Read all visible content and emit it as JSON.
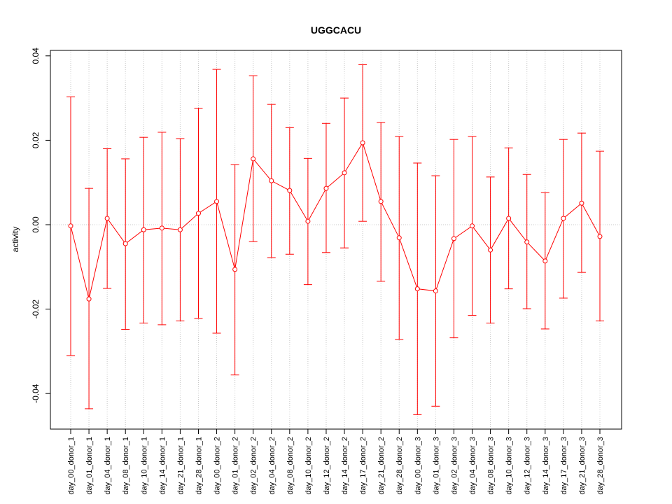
{
  "chart_data": {
    "type": "line",
    "title": "UGGCACU",
    "xlabel": "",
    "ylabel": "activity",
    "ylim": [
      -0.0485,
      0.0415
    ],
    "yticks": [
      -0.04,
      -0.02,
      0.0,
      0.02,
      0.04
    ],
    "ytick_labels": [
      "-0.04",
      "-0.02",
      "0.00",
      "0.02",
      "0.04"
    ],
    "grid": "dotted vertical at each category, horizontal at 0",
    "color": "#ff0000",
    "categories": [
      "day_00_donor_1",
      "day_01_donor_1",
      "day_04_donor_1",
      "day_08_donor_1",
      "day_10_donor_1",
      "day_14_donor_1",
      "day_21_donor_1",
      "day_28_donor_1",
      "day_00_donor_2",
      "day_01_donor_2",
      "day_02_donor_2",
      "day_04_donor_2",
      "day_08_donor_2",
      "day_10_donor_2",
      "day_12_donor_2",
      "day_14_donor_2",
      "day_17_donor_2",
      "day_21_donor_2",
      "day_28_donor_2",
      "day_00_donor_3",
      "day_01_donor_3",
      "day_02_donor_3",
      "day_04_donor_3",
      "day_08_donor_3",
      "day_10_donor_3",
      "day_12_donor_3",
      "day_14_donor_3",
      "day_17_donor_3",
      "day_21_donor_3",
      "day_28_donor_3"
    ],
    "values": [
      -0.0003,
      -0.0176,
      0.0015,
      -0.0045,
      -0.0012,
      -0.0008,
      -0.0012,
      0.0027,
      0.0055,
      -0.0106,
      0.0156,
      0.0104,
      0.0081,
      0.0008,
      0.0086,
      0.0123,
      0.0194,
      0.0055,
      -0.0031,
      -0.0152,
      -0.0157,
      -0.0033,
      -0.0003,
      -0.006,
      0.0015,
      -0.0041,
      -0.0086,
      0.0015,
      0.0051,
      -0.0028
    ],
    "upper": [
      0.0303,
      0.0086,
      0.018,
      0.0156,
      0.0207,
      0.0219,
      0.0204,
      0.0276,
      0.0368,
      0.0142,
      0.0353,
      0.0285,
      0.023,
      0.0157,
      0.024,
      0.03,
      0.0379,
      0.0242,
      0.0209,
      0.0146,
      0.0116,
      0.0202,
      0.0209,
      0.0113,
      0.0182,
      0.0119,
      0.0076,
      0.0202,
      0.0217,
      0.0174
    ],
    "lower": [
      -0.031,
      -0.0436,
      -0.0151,
      -0.0248,
      -0.0233,
      -0.0237,
      -0.0228,
      -0.0222,
      -0.0257,
      -0.0356,
      -0.004,
      -0.0078,
      -0.007,
      -0.0142,
      -0.0066,
      -0.0055,
      0.0008,
      -0.0134,
      -0.0272,
      -0.045,
      -0.043,
      -0.0268,
      -0.0215,
      -0.0233,
      -0.0152,
      -0.0199,
      -0.0247,
      -0.0174,
      -0.0113,
      -0.0228
    ]
  }
}
